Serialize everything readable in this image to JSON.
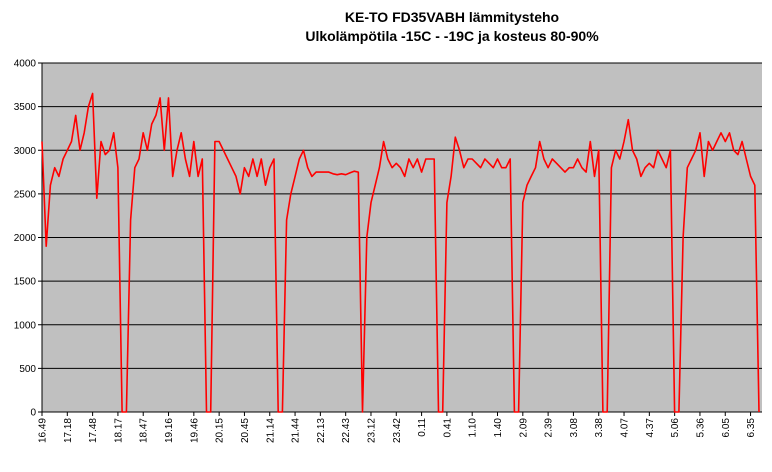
{
  "chart_data": {
    "type": "line",
    "title": "KE-TO FD35VABH lämmitysteho",
    "subtitle": "Ulkolämpötila  -15C - -19C ja kosteus 80-90%",
    "categories": [
      "16.49",
      null,
      null,
      null,
      null,
      null,
      "17.18",
      null,
      null,
      null,
      null,
      null,
      "17.48",
      null,
      null,
      null,
      null,
      null,
      "18.17",
      null,
      null,
      null,
      null,
      null,
      "18.47",
      null,
      null,
      null,
      null,
      null,
      "19.16",
      null,
      null,
      null,
      null,
      null,
      "19.46",
      null,
      null,
      null,
      null,
      null,
      "20.15",
      null,
      null,
      null,
      null,
      null,
      "20.45",
      null,
      null,
      null,
      null,
      null,
      "21.14",
      null,
      null,
      null,
      null,
      null,
      "21.44",
      null,
      null,
      null,
      null,
      null,
      "22.13",
      null,
      null,
      null,
      null,
      null,
      "22.43",
      null,
      null,
      null,
      null,
      null,
      "23.12",
      null,
      null,
      null,
      null,
      null,
      "23.42",
      null,
      null,
      null,
      null,
      null,
      "0.11",
      null,
      null,
      null,
      null,
      null,
      "0.41",
      null,
      null,
      null,
      null,
      null,
      "1.10",
      null,
      null,
      null,
      null,
      null,
      "1.40",
      null,
      null,
      null,
      null,
      null,
      "2.09",
      null,
      null,
      null,
      null,
      null,
      "2.39",
      null,
      null,
      null,
      null,
      null,
      "3.08",
      null,
      null,
      null,
      null,
      null,
      "3.38",
      null,
      null,
      null,
      null,
      null,
      "4.07",
      null,
      null,
      null,
      null,
      null,
      "4.37",
      null,
      null,
      null,
      null,
      null,
      "5.06",
      null,
      null,
      null,
      null,
      null,
      "5.36",
      null,
      null,
      null,
      null,
      null,
      "6.05",
      null,
      null,
      null,
      null,
      null,
      "6.35",
      null,
      null
    ],
    "series": [
      {
        "name": "lämmitysteho",
        "color": "#ff0000",
        "values": [
          3100,
          1900,
          2600,
          2800,
          2700,
          2900,
          3000,
          3100,
          3400,
          3000,
          3200,
          3500,
          3650,
          2450,
          3100,
          2950,
          3000,
          3200,
          2800,
          0,
          0,
          2200,
          2800,
          2900,
          3200,
          3000,
          3300,
          3400,
          3600,
          3000,
          3600,
          2700,
          3000,
          3200,
          2900,
          2700,
          3100,
          2700,
          2900,
          0,
          0,
          3100,
          3100,
          3000,
          2900,
          2800,
          2700,
          2500,
          2800,
          2700,
          2900,
          2700,
          2900,
          2600,
          2800,
          2900,
          0,
          0,
          2200,
          2500,
          2700,
          2900,
          3000,
          2800,
          2700,
          2750,
          2750,
          2750,
          2750,
          2730,
          2720,
          2730,
          2720,
          2740,
          2760,
          2750,
          0,
          2000,
          2400,
          2600,
          2800,
          3100,
          2900,
          2800,
          2850,
          2800,
          2700,
          2900,
          2800,
          2900,
          2750,
          2900,
          2900,
          2900,
          0,
          0,
          2400,
          2700,
          3150,
          3000,
          2800,
          2900,
          2900,
          2850,
          2800,
          2900,
          2850,
          2800,
          2900,
          2800,
          2800,
          2900,
          0,
          0,
          2400,
          2600,
          2700,
          2800,
          3100,
          2900,
          2800,
          2900,
          2850,
          2800,
          2750,
          2800,
          2800,
          2900,
          2800,
          2750,
          3100,
          2700,
          3000,
          0,
          0,
          2800,
          3000,
          2900,
          3100,
          3350,
          3000,
          2900,
          2700,
          2800,
          2850,
          2800,
          3000,
          2900,
          2800,
          3000,
          0,
          0,
          2000,
          2800,
          2900,
          3000,
          3200,
          2700,
          3100,
          3000,
          3100,
          3200,
          3100,
          3200,
          3000,
          2950,
          3100,
          2900,
          2700,
          2600,
          0
        ]
      }
    ],
    "ylim": [
      0,
      4000
    ],
    "yticks": [
      0,
      500,
      1000,
      1500,
      2000,
      2500,
      3000,
      3500,
      4000
    ],
    "grid": true
  }
}
